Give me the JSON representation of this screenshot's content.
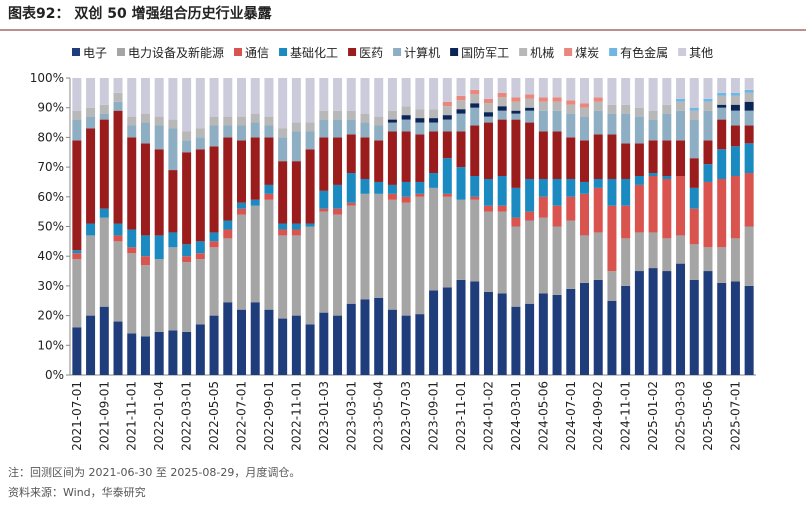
{
  "chart_data": {
    "type": "stacked_bar",
    "title": "图表92： 双创 50 增强组合历史行业暴露",
    "notes": [
      "注：回测区间为 2021-06-30 至 2025-08-29，月度调仓。",
      "资料来源：Wind，华泰研究"
    ],
    "categories": [
      "2021-07-01",
      null,
      "2021-09-01",
      null,
      "2021-11-01",
      null,
      "2022-01-04",
      null,
      "2022-03-01",
      null,
      "2022-05-05",
      null,
      "2022-07-01",
      null,
      "2022-09-01",
      null,
      "2022-11-01",
      null,
      "2023-01-03",
      null,
      "2023-03-01",
      null,
      "2023-05-04",
      null,
      "2023-07-03",
      null,
      "2023-09-01",
      null,
      "2023-11-01",
      null,
      "2024-01-02",
      null,
      "2024-03-01",
      null,
      "2024-05-06",
      null,
      "2024-07-01",
      null,
      "2024-09-02",
      null,
      "2024-11-01",
      null,
      "2025-01-02",
      null,
      "2025-03-03",
      null,
      "2025-05-06",
      null,
      "2025-07-01",
      null
    ],
    "ylim": [
      0,
      100
    ],
    "yticks": [
      {
        "value": 0,
        "label": "0%"
      },
      {
        "value": 10,
        "label": "10%"
      },
      {
        "value": 20,
        "label": "20%"
      },
      {
        "value": 30,
        "label": "30%"
      },
      {
        "value": 40,
        "label": "40%"
      },
      {
        "value": 50,
        "label": "50%"
      },
      {
        "value": 60,
        "label": "60%"
      },
      {
        "value": 70,
        "label": "70%"
      },
      {
        "value": 80,
        "label": "80%"
      },
      {
        "value": 90,
        "label": "90%"
      },
      {
        "value": 100,
        "label": "100%"
      }
    ],
    "legend": "top",
    "series": [
      {
        "name": "电子",
        "color": "#1f3d7a",
        "values": [
          16,
          20,
          23,
          18,
          14,
          13,
          14.5,
          15,
          14.5,
          17,
          20,
          24.5,
          22,
          24.5,
          22,
          19,
          20,
          17,
          21,
          20,
          24,
          25.5,
          26,
          22,
          20,
          20.5,
          28.5,
          29.5,
          32,
          31.5,
          28,
          27.5,
          23,
          24,
          27.5,
          27,
          29,
          31,
          32,
          25,
          30,
          35,
          36,
          35,
          37.5,
          32,
          35,
          31,
          31.5,
          30
        ]
      },
      {
        "name": "电力设备及新能源",
        "color": "#a5a5a5",
        "values": [
          23,
          27,
          30,
          27,
          27,
          24,
          24.5,
          28,
          23.5,
          22,
          23,
          21.5,
          32,
          32.5,
          37,
          28,
          27,
          33,
          34,
          34,
          33,
          35.5,
          35,
          37,
          38,
          39.5,
          34.5,
          30.5,
          27,
          27.5,
          27,
          27.5,
          27,
          28,
          25.5,
          23,
          23,
          16,
          16,
          10,
          16,
          13,
          12,
          11,
          9.5,
          12,
          8,
          12,
          14.5,
          20
        ]
      },
      {
        "name": "通信",
        "color": "#d9534f",
        "values": [
          2,
          0,
          0,
          2,
          2,
          3,
          0,
          0,
          2,
          2,
          2,
          3,
          2,
          0,
          2,
          2,
          2,
          0,
          1,
          2,
          1,
          0,
          0,
          2,
          2,
          1,
          0,
          1,
          0,
          1,
          2,
          2,
          3,
          3,
          7,
          7,
          8,
          14,
          15,
          22,
          11,
          16,
          19,
          20,
          20,
          12,
          22,
          23,
          21,
          18
        ]
      },
      {
        "name": "基础化工",
        "color": "#1b8ac0",
        "values": [
          1,
          4,
          3,
          4,
          6,
          7,
          8,
          5,
          4,
          4,
          3,
          3,
          2,
          2,
          3,
          2,
          2,
          1,
          6,
          8,
          10,
          5,
          4,
          3,
          5,
          4,
          5,
          12,
          11,
          7,
          9,
          10,
          10,
          11,
          6,
          9,
          6,
          4,
          3,
          9,
          9,
          3,
          1,
          1,
          0,
          7,
          6,
          10,
          10,
          10
        ]
      },
      {
        "name": "医药",
        "color": "#9b1c1c",
        "values": [
          37,
          32,
          30,
          38,
          31,
          31,
          29,
          21,
          31,
          31,
          29,
          28,
          21,
          21,
          16,
          21,
          21,
          25,
          18,
          16,
          13,
          14,
          14,
          18,
          17,
          16,
          14,
          9,
          12,
          17,
          19,
          19,
          23,
          19,
          16,
          16,
          14,
          14,
          15,
          15,
          12,
          11,
          11,
          12,
          12,
          10,
          8,
          10,
          7,
          6
        ]
      },
      {
        "name": "计算机",
        "color": "#8eaec4",
        "values": [
          7,
          4,
          2,
          3,
          4,
          7,
          8,
          14,
          4,
          4,
          7,
          4,
          5,
          5,
          4,
          8,
          10,
          6,
          6,
          6,
          5,
          5,
          5,
          3,
          4,
          4,
          3,
          4,
          6,
          6,
          2,
          3,
          2,
          4,
          7,
          7,
          8,
          8,
          8,
          7,
          10,
          9,
          7,
          9,
          10,
          13,
          10,
          4,
          5,
          5
        ]
      },
      {
        "name": "国防军工",
        "color": "#0c2557",
        "values": [
          0,
          0,
          0,
          0,
          0,
          0,
          0,
          0,
          0,
          0,
          0,
          0,
          0,
          0,
          0,
          0,
          0,
          0,
          0,
          0,
          0,
          0,
          0,
          1,
          1.5,
          1.5,
          1.5,
          1.5,
          1.5,
          1.5,
          1.5,
          1.5,
          1,
          1,
          0,
          0,
          0,
          0,
          0,
          0,
          0,
          0,
          0,
          0,
          0,
          0,
          0,
          1,
          2,
          3
        ]
      },
      {
        "name": "机械",
        "color": "#b8b8b8",
        "values": [
          3,
          3,
          3,
          3,
          3,
          3,
          3,
          3,
          3,
          3,
          3,
          3,
          3,
          3,
          3,
          3,
          3,
          3,
          3,
          3,
          3,
          3,
          3,
          3,
          3,
          3,
          3,
          3,
          3,
          3,
          3,
          3,
          3,
          3,
          3,
          3,
          3,
          3,
          3,
          3,
          3,
          3,
          3,
          3,
          3,
          3,
          3,
          3,
          3,
          3
        ]
      },
      {
        "name": "煤炭",
        "color": "#e8877d",
        "values": [
          0,
          0,
          0,
          0,
          0,
          0,
          0,
          0,
          0,
          0,
          0,
          0,
          0,
          0,
          0,
          0,
          0,
          0,
          0,
          0,
          0,
          0,
          0,
          0,
          0,
          0,
          0,
          1.5,
          1.5,
          1.5,
          1.5,
          1.5,
          1.5,
          1.5,
          1.5,
          1.5,
          1.5,
          1.5,
          1.5,
          0,
          0,
          0,
          0,
          0,
          0,
          0,
          0,
          0,
          0,
          0
        ]
      },
      {
        "name": "有色金属",
        "color": "#6fb6e3",
        "values": [
          0,
          0,
          0,
          0,
          0,
          0,
          0,
          0,
          0,
          0,
          0,
          0,
          0,
          0,
          0,
          0,
          0,
          0,
          0,
          0,
          0,
          0,
          0,
          0,
          0,
          0,
          0,
          0,
          0,
          0,
          0,
          0,
          0,
          0,
          0,
          0,
          0,
          0,
          0,
          0,
          0,
          0,
          0,
          0,
          1,
          1,
          1,
          1,
          1,
          1
        ]
      },
      {
        "name": "其他",
        "color": "#cccbdc",
        "values": [
          11,
          10,
          9,
          5,
          13,
          12,
          13,
          14,
          18,
          17,
          13,
          13,
          13,
          12,
          13,
          17,
          15,
          15,
          11,
          11,
          11,
          12,
          13,
          11,
          9.5,
          10.5,
          10.5,
          8,
          6,
          4,
          7,
          5,
          6.5,
          5.5,
          6.5,
          6.5,
          7.5,
          8.5,
          6.5,
          9,
          9,
          10,
          11,
          9,
          7,
          10,
          7,
          5,
          5,
          4
        ]
      }
    ]
  }
}
